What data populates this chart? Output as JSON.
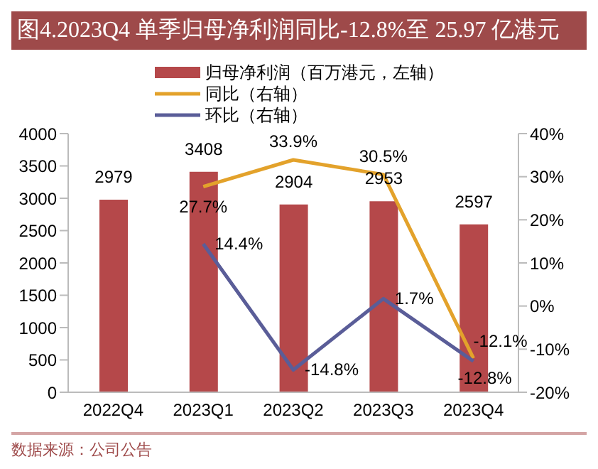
{
  "chart_data": {
    "type": "bar",
    "title": "图4.2023Q4 单季归母净利润同比-12.8%至 25.97 亿港元",
    "categories": [
      "2022Q4",
      "2023Q1",
      "2023Q2",
      "2023Q3",
      "2023Q4"
    ],
    "series": [
      {
        "name": "归母净利润（百万港元，左轴）",
        "color": "#b5484a",
        "values": [
          2979,
          3408,
          2904,
          2953,
          2597
        ],
        "value_labels": [
          "2979",
          "3408",
          "2904",
          "2953",
          "2597"
        ]
      },
      {
        "name": "同比（右轴）",
        "type": "line",
        "axis": "y2",
        "color": "#e3a22b",
        "values": [
          null,
          27.7,
          33.9,
          30.5,
          -12.1
        ],
        "value_labels": [
          null,
          "27.7%",
          "33.9%",
          "30.5%",
          "-12.1%"
        ]
      },
      {
        "name": "环比（右轴）",
        "type": "line",
        "axis": "y2",
        "color": "#5a5d98",
        "values": [
          null,
          14.4,
          -14.8,
          1.7,
          -12.8
        ],
        "value_labels": [
          null,
          "14.4%",
          "-14.8%",
          "1.7%",
          "-12.8%"
        ]
      }
    ],
    "ylim": [
      0,
      4000
    ],
    "yticks": [
      0,
      500,
      1000,
      1500,
      2000,
      2500,
      3000,
      3500,
      4000
    ],
    "y2lim": [
      -20,
      40
    ],
    "y2ticks": [
      {
        "value": -20,
        "label": "-20%"
      },
      {
        "value": -10,
        "label": "-10%"
      },
      {
        "value": 0,
        "label": "0%"
      },
      {
        "value": 10,
        "label": "10%"
      },
      {
        "value": 20,
        "label": "20%"
      },
      {
        "value": 30,
        "label": "30%"
      },
      {
        "value": 40,
        "label": "40%"
      }
    ],
    "legend": "top",
    "line_style": "solid",
    "marker": "none",
    "annotations": [
      "数据来源：公司公告"
    ]
  }
}
